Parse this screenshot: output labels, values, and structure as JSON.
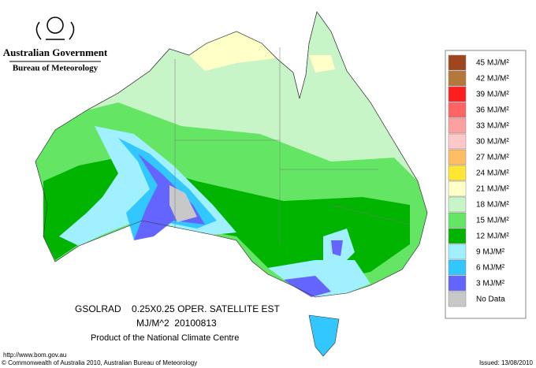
{
  "header": {
    "title": "Australian Government",
    "subtitle": "Bureau of Meteorology"
  },
  "legend": [
    {
      "label": "45 MJ/M²",
      "color": "#a0461e"
    },
    {
      "label": "42 MJ/M²",
      "color": "#b4783c"
    },
    {
      "label": "39 MJ/M²",
      "color": "#ff1e1e"
    },
    {
      "label": "36 MJ/M²",
      "color": "#ff6464"
    },
    {
      "label": "33 MJ/M²",
      "color": "#ffa0a0"
    },
    {
      "label": "30 MJ/M²",
      "color": "#ffc8c8"
    },
    {
      "label": "27 MJ/M²",
      "color": "#ffbe64"
    },
    {
      "label": "24 MJ/M²",
      "color": "#ffe632"
    },
    {
      "label": "21 MJ/M²",
      "color": "#ffffc8"
    },
    {
      "label": "18 MJ/M²",
      "color": "#c8f5c8"
    },
    {
      "label": "15 MJ/M²",
      "color": "#64e664"
    },
    {
      "label": "12 MJ/M²",
      "color": "#00b400"
    },
    {
      "label": "9 MJ/M²",
      "color": "#a0f0ff"
    },
    {
      "label": "6 MJ/M²",
      "color": "#32c8ff"
    },
    {
      "label": "3 MJ/M²",
      "color": "#6464ff"
    },
    {
      "label": "No Data",
      "color": "#c8c8c8"
    }
  ],
  "caption": {
    "line1": "GSOLRAD    0.25X0.25 OPER. SATELLITE EST",
    "line2": "MJ/M^2  20100813",
    "line3": "Product of the National Climate Centre"
  },
  "footer": {
    "url": "http://www.bom.gov.au",
    "copyright": "© Commonwealth of Australia 2010, Australian Bureau of Meteorology",
    "issued": "Issued: 13/08/2010"
  }
}
